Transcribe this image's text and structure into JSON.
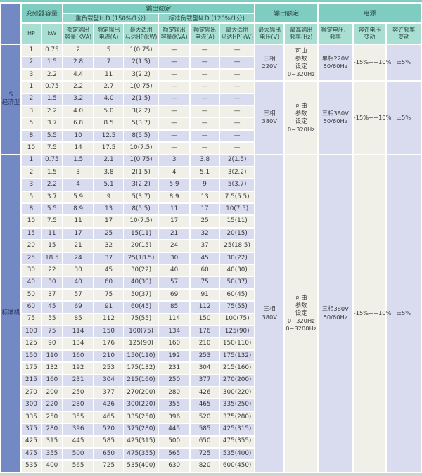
{
  "colors": {
    "header_dark_teal": "#7ecdc0",
    "header_mid_teal": "#93d5c9",
    "header_light_teal": "#a9dfd3",
    "side_label_blue": "#7389c3",
    "row_beige": "#f0f0e9",
    "row_lavender": "#d9dbef"
  },
  "header": {
    "capacity": "变频器容量",
    "output_rating_left": "输出额定",
    "hd_label": "重负载型H.D.(150%/1分)",
    "nd_label": "标准负载型N.D.(120%/1分)",
    "output_rating_right": "输出额定",
    "power_label": "电源",
    "col_hp": "HP",
    "col_kw": "kW",
    "col_kva": "额定输出\n容量(KVA)",
    "col_amp": "额定输出\n电流(A)",
    "col_motor": "最大适用\n马达HP(kW)",
    "col_max_voltage": "最大输出\n电压(V)",
    "col_max_freq": "最高输出\n频率(Hz)",
    "col_rated_vf": "额定电压、\n频率",
    "col_volt_tol": "容许电压\n变动",
    "col_freq_tol": "容许频率\n变动"
  },
  "sections": [
    {
      "label": "S\n经济型",
      "blocks": [
        {
          "stripes": "BLB",
          "rows": [
            [
              "1",
              "0.75",
              "2",
              "5",
              "1(0.75)",
              "—",
              "—",
              "—"
            ],
            [
              "2",
              "1.5",
              "2.8",
              "7",
              "2(1.5)",
              "—",
              "—",
              "—"
            ],
            [
              "3",
              "2.2",
              "4.4",
              "11",
              "3(2.2)",
              "—",
              "—",
              "—"
            ]
          ],
          "merged": {
            "voltage": "三相\n220V",
            "freq": "可由\n参数\n设定\n0~320Hz",
            "rated": "单相220V\n50/60Hz",
            "volt_tol": "-15%~+10%",
            "freq_tol": "±5%"
          }
        },
        {
          "stripes": "BLB",
          "rows": [
            [
              "1",
              "0.75",
              "2.2",
              "2.7",
              "1(0.75)",
              "—",
              "—",
              "—"
            ],
            [
              "2",
              "1.5",
              "3.2",
              "4.0",
              "2(1.5)",
              "—",
              "—",
              "—"
            ],
            [
              "3",
              "2.2",
              "4.0",
              "5.0",
              "3(2.2)",
              "—",
              "—",
              "—"
            ],
            [
              "5",
              "3.7",
              "6.8",
              "8.5",
              "5(3.7)",
              "—",
              "—",
              "—"
            ],
            [
              "8",
              "5.5",
              "10",
              "12.5",
              "8(5.5)",
              "—",
              "—",
              "—"
            ],
            [
              "10",
              "7.5",
              "14",
              "17.5",
              "10(7.5)",
              "—",
              "—",
              "—"
            ]
          ],
          "merged": {
            "voltage": "三相\n380V",
            "freq": "可由\n参数\n设定\n0~320Hz",
            "rated": "三相380V\n50/60Hz",
            "volt_tol": "-15%~+10%",
            "freq_tol": "±5%"
          }
        }
      ]
    },
    {
      "label": "标准机",
      "blocks": [
        {
          "stripes": "LB",
          "rows": [
            [
              "1",
              "0.75",
              "1.5",
              "2.1",
              "1(0.75)",
              "3",
              "3.8",
              "2(1.5)"
            ],
            [
              "2",
              "1.5",
              "3",
              "3.8",
              "2(1.5)",
              "4",
              "5.1",
              "3(2.2)"
            ],
            [
              "3",
              "2.2",
              "4",
              "5.1",
              "3(2.2)",
              "5.9",
              "9",
              "5(3.7)"
            ],
            [
              "5",
              "3.7",
              "5.9",
              "9",
              "5(3.7)",
              "8.9",
              "13",
              "7.5(5.5)"
            ],
            [
              "8",
              "5.5",
              "8.9",
              "13",
              "8(5.5)",
              "11",
              "17",
              "10(7.5)"
            ],
            [
              "10",
              "7.5",
              "11",
              "17",
              "10(7.5)",
              "17",
              "25",
              "15(11)"
            ],
            [
              "15",
              "11",
              "17",
              "25",
              "15(11)",
              "21",
              "32",
              "20(15)"
            ],
            [
              "20",
              "15",
              "21",
              "32",
              "20(15)",
              "24",
              "37",
              "25(18.5)"
            ],
            [
              "25",
              "18.5",
              "24",
              "37",
              "25(18.5)",
              "30",
              "45",
              "30(22)"
            ],
            [
              "30",
              "22",
              "30",
              "45",
              "30(22)",
              "40",
              "60",
              "40(30)"
            ],
            [
              "40",
              "30",
              "40",
              "60",
              "40(30)",
              "57",
              "75",
              "50(37)"
            ],
            [
              "50",
              "37",
              "57",
              "75",
              "50(37)",
              "69",
              "91",
              "60(45)"
            ],
            [
              "60",
              "45",
              "69",
              "91",
              "60(45)",
              "85",
              "112",
              "75(55)"
            ],
            [
              "75",
              "55",
              "85",
              "112",
              "75(55)",
              "114",
              "150",
              "100(75)"
            ],
            [
              "100",
              "75",
              "114",
              "150",
              "100(75)",
              "134",
              "176",
              "125(90)"
            ],
            [
              "125",
              "90",
              "134",
              "176",
              "125(90)",
              "160",
              "210",
              "150(110)"
            ],
            [
              "150",
              "110",
              "160",
              "210",
              "150(110)",
              "192",
              "253",
              "175(132)"
            ],
            [
              "175",
              "132",
              "192",
              "253",
              "175(132)",
              "231",
              "304",
              "215(160)"
            ],
            [
              "215",
              "160",
              "231",
              "304",
              "215(160)",
              "250",
              "377",
              "270(200)"
            ],
            [
              "270",
              "200",
              "250",
              "377",
              "270(200)",
              "280",
              "426",
              "300(220)"
            ],
            [
              "300",
              "220",
              "280",
              "426",
              "300(220)",
              "355",
              "465",
              "335(250)"
            ],
            [
              "335",
              "250",
              "355",
              "465",
              "335(250)",
              "396",
              "520",
              "375(280)"
            ],
            [
              "375",
              "280",
              "396",
              "520",
              "375(280)",
              "445",
              "585",
              "425(315)"
            ],
            [
              "425",
              "315",
              "445",
              "585",
              "425(315)",
              "500",
              "650",
              "475(355)"
            ],
            [
              "475",
              "355",
              "500",
              "650",
              "475(355)",
              "565",
              "725",
              "535(400)"
            ],
            [
              "535",
              "400",
              "565",
              "725",
              "535(400)",
              "630",
              "820",
              "600(450)"
            ]
          ],
          "merged": {
            "voltage": "三相\n380V",
            "freq": "可由\n参数\n设定\n0~320Hz\n0~3200Hz",
            "rated": "三相380V\n50/60Hz",
            "volt_tol": "-15%~+10%",
            "freq_tol": "±5%"
          }
        }
      ]
    }
  ]
}
